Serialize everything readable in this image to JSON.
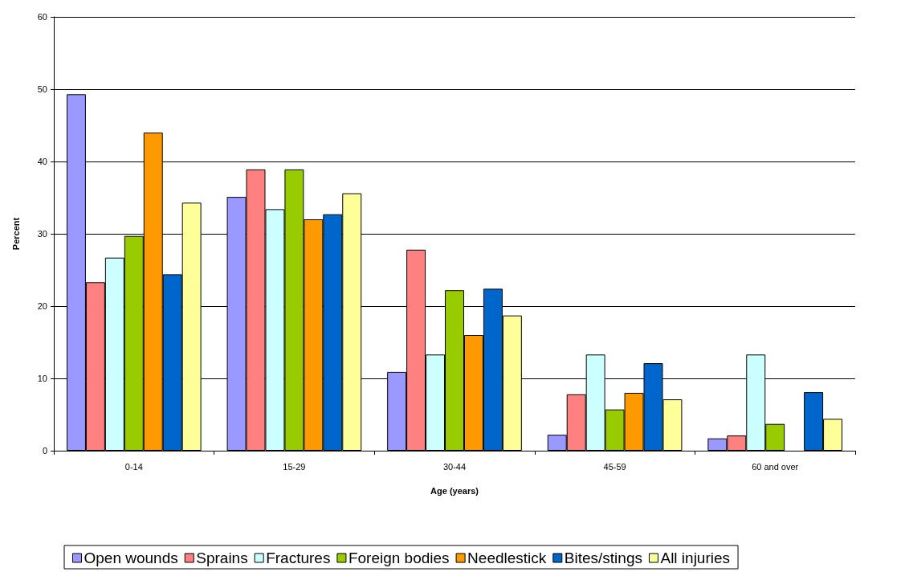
{
  "chart_data": {
    "type": "bar",
    "xlabel": "Age (years)",
    "ylabel": "Percent",
    "categories": [
      "0-14",
      "15-29",
      "30-44",
      "45-59",
      "60 and over"
    ],
    "series": [
      {
        "name": "Open wounds",
        "color": "#9999ff",
        "values": [
          49.3,
          35.1,
          10.9,
          2.2,
          1.7
        ]
      },
      {
        "name": "Sprains",
        "color": "#ff8080",
        "values": [
          23.3,
          38.9,
          27.8,
          7.8,
          2.1
        ]
      },
      {
        "name": "Fractures",
        "color": "#ccffff",
        "values": [
          26.7,
          33.4,
          13.3,
          13.3,
          13.3
        ]
      },
      {
        "name": "Foreign bodies",
        "color": "#99cc00",
        "values": [
          29.7,
          38.9,
          22.2,
          5.7,
          3.7
        ]
      },
      {
        "name": "Needlestick",
        "color": "#ff9900",
        "values": [
          44,
          32,
          16,
          8,
          null
        ]
      },
      {
        "name": "Bites/stings",
        "color": "#0066cc",
        "values": [
          24.4,
          32.7,
          22.4,
          12.1,
          8.1
        ]
      },
      {
        "name": "All injuries",
        "color": "#ffff99",
        "values": [
          34.3,
          35.6,
          18.7,
          7.1,
          4.4
        ]
      }
    ],
    "ylim": [
      0,
      60
    ],
    "yticks": [
      0,
      10,
      20,
      30,
      40,
      50,
      60
    ],
    "grid": "y",
    "legend": "bottom"
  }
}
